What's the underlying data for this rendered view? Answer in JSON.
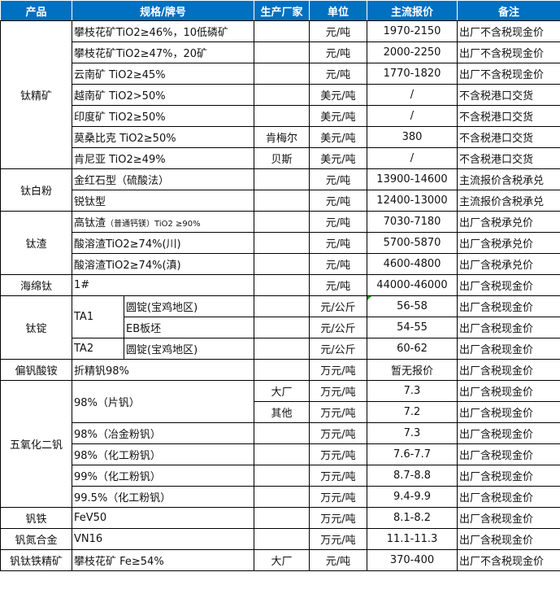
{
  "header": {
    "product": "产品",
    "spec": "规格/牌号",
    "maker": "生产厂家",
    "unit": "单位",
    "price": "主流报价",
    "note": "备注"
  },
  "colors": {
    "header_bg": "#0070c0",
    "header_text": "#ffffff"
  },
  "groups": [
    {
      "product": "钛精矿",
      "rows": [
        {
          "spec": "攀枝花矿TiO2≥46%，10低磷矿",
          "maker": "",
          "unit": "元/吨",
          "price": "1970-2150",
          "note": "出厂不含税现金价"
        },
        {
          "spec": "攀枝花矿TiO2≥47%，20矿",
          "maker": "",
          "unit": "元/吨",
          "price": "2000-2250",
          "note": "出厂不含税现金价"
        },
        {
          "spec": "云南矿 TiO2≥45%",
          "maker": "",
          "unit": "元/吨",
          "price": "1770-1820",
          "note": "出厂不含税现金价"
        },
        {
          "spec": "越南矿 TiO2>50%",
          "maker": "",
          "unit": "美元/吨",
          "price": "/",
          "note": "不含税港口交货"
        },
        {
          "spec": "印度矿 TiO2≥50%",
          "maker": "",
          "unit": "美元/吨",
          "price": "/",
          "note": "不含税港口交货"
        },
        {
          "spec": "莫桑比克 TiO2≥50%",
          "maker": "肯梅尔",
          "unit": "美元/吨",
          "price": "380",
          "note": "不含税港口交货"
        },
        {
          "spec": "肯尼亚 TiO2≥49%",
          "maker": "贝斯",
          "unit": "美元/吨",
          "price": "/",
          "note": "不含税港口交货"
        }
      ]
    },
    {
      "product": "钛白粉",
      "rows": [
        {
          "spec": "金红石型（硫酸法）",
          "maker": "",
          "unit": "元/吨",
          "price": "13900-14600",
          "note": "主流报价含税承兑"
        },
        {
          "spec": "锐钛型",
          "maker": "",
          "unit": "元/吨",
          "price": "12400-13000",
          "note": "主流报价含税承兑"
        }
      ]
    },
    {
      "product": "钛渣",
      "rows": [
        {
          "spec": "高钛渣",
          "spec_small": "（普通钙镁）TiO2 ≥90%",
          "maker": "",
          "unit": "元/吨",
          "price": "7030-7180",
          "note": "出厂含税承兑价"
        },
        {
          "spec": "酸溶渣TiO2≥74%(川)",
          "maker": "",
          "unit": "元/吨",
          "price": "5700-5870",
          "note": "出厂含税承兑价"
        },
        {
          "spec": "酸溶渣TiO2≥74%(滇)",
          "maker": "",
          "unit": "元/吨",
          "price": "4600-4800",
          "note": "出厂含税承兑价"
        }
      ]
    },
    {
      "product": "海绵钛",
      "rows": [
        {
          "spec": "1#",
          "maker": "",
          "unit": "元/吨",
          "price": "44000-46000",
          "note": "出厂含税现金价"
        }
      ]
    },
    {
      "product": "钛锭",
      "rows": [
        {
          "grade": "TA1",
          "spec": "圆锭(宝鸡地区)",
          "maker": "",
          "unit": "元/公斤",
          "price": "56-58",
          "note": "出厂含税现金价",
          "flag": true
        },
        {
          "grade": "TA1",
          "spec": "EB板坯",
          "maker": "",
          "unit": "元/公斤",
          "price": "54-55",
          "note": "出厂含税现金价"
        },
        {
          "grade": "TA2",
          "spec": "圆锭(宝鸡地区)",
          "maker": "",
          "unit": "元/公斤",
          "price": "60-62",
          "note": "出厂含税现金价"
        }
      ]
    },
    {
      "product": "偏钒酸铵",
      "rows": [
        {
          "spec": "折精钒98%",
          "maker": "",
          "unit": "万元/吨",
          "price": "暂无报价",
          "note": "出厂含税现金价"
        }
      ]
    },
    {
      "product": "五氧化二钒",
      "rows": [
        {
          "spec": "98%（片钒）",
          "maker": "大厂",
          "unit": "万元/吨",
          "price": "7.3",
          "note": "出厂含税现金价"
        },
        {
          "spec": "98%（片钒）",
          "maker": "其他",
          "unit": "万元/吨",
          "price": "7.2",
          "note": "出厂含税现金价"
        },
        {
          "spec": "98%（冶金粉钒）",
          "maker": "",
          "unit": "万元/吨",
          "price": "7.3",
          "note": "出厂含税现金价"
        },
        {
          "spec": "98%（化工粉钒）",
          "maker": "",
          "unit": "万元/吨",
          "price": "7.6-7.7",
          "note": "出厂含税现金价"
        },
        {
          "spec": "99%（化工粉钒）",
          "maker": "",
          "unit": "万元/吨",
          "price": "8.7-8.8",
          "note": "出厂含税现金价"
        },
        {
          "spec": "99.5%（化工粉钒）",
          "maker": "",
          "unit": "万元/吨",
          "price": "9.4-9.9",
          "note": "出厂含税现金价"
        }
      ]
    },
    {
      "product": "钒铁",
      "rows": [
        {
          "spec": "FeV50",
          "maker": "",
          "unit": "万元/吨",
          "price": "8.1-8.2",
          "note": "出厂含税现金价"
        }
      ]
    },
    {
      "product": "钒氮合金",
      "rows": [
        {
          "spec": "VN16",
          "maker": "",
          "unit": "万元/吨",
          "price": "11.1-11.3",
          "note": "出厂含税现金价"
        }
      ]
    },
    {
      "product": "钒钛铁精矿",
      "rows": [
        {
          "spec": "攀枝花矿 Fe≥54%",
          "maker": "大厂",
          "unit": "元/吨",
          "price": "370-400",
          "note": "出厂不含税现金价"
        }
      ]
    }
  ]
}
